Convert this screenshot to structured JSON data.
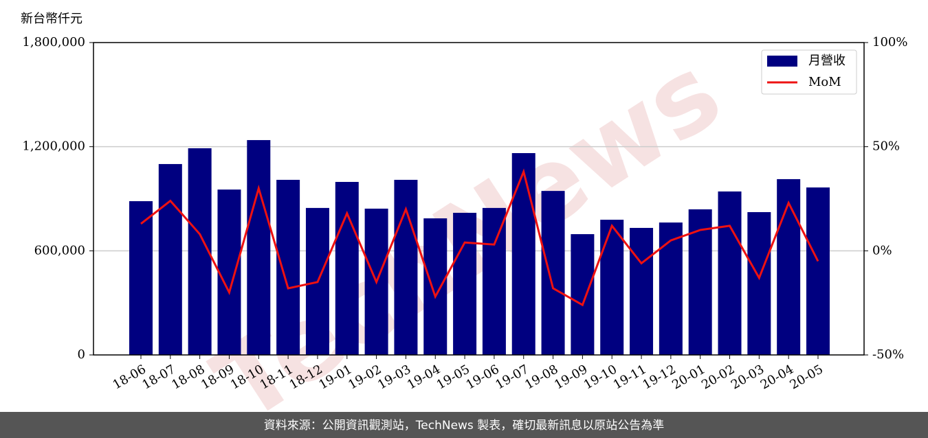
{
  "chart_data": {
    "type": "bar_line",
    "y_label": "新台幣仟元",
    "watermark": "TechNews",
    "footer": "資料來源：公開資訊觀測站，TechNews 製表，確切最新訊息以原站公告為準",
    "categories": [
      "18-06",
      "18-07",
      "18-08",
      "18-09",
      "18-10",
      "18-11",
      "18-12",
      "19-01",
      "19-02",
      "19-03",
      "19-04",
      "19-05",
      "19-06",
      "19-07",
      "19-08",
      "19-09",
      "19-10",
      "19-11",
      "19-12",
      "20-01",
      "20-02",
      "20-03",
      "20-04",
      "20-05"
    ],
    "series": [
      {
        "name": "月營收",
        "type": "bar",
        "color": "#000080",
        "values": [
          886000,
          1100000,
          1191000,
          953000,
          1238000,
          1009000,
          847000,
          997000,
          843000,
          1009000,
          787000,
          819000,
          847000,
          1163000,
          945000,
          696000,
          779000,
          732000,
          763000,
          839000,
          942000,
          823000,
          1013000,
          965000
        ]
      },
      {
        "name": "MoM",
        "type": "line",
        "axis": "y2",
        "color": "#ee1111",
        "values": [
          13,
          24,
          8,
          -20,
          30,
          -18,
          -15,
          18,
          -15,
          20,
          -22,
          4,
          3,
          38,
          -18,
          -26,
          12,
          -6,
          5,
          10,
          12,
          -13,
          23,
          -5
        ]
      }
    ],
    "ylim": [
      0,
      1800000
    ],
    "yticks": [
      0,
      {
        "value": 600000,
        "label": "600,000"
      },
      {
        "value": 1200000,
        "label": "1,200,000"
      },
      {
        "value": 1800000,
        "label": "1,800,000"
      }
    ],
    "y2lim": [
      -50,
      100
    ],
    "y2ticks": [
      {
        "value": -50,
        "label": "-50%"
      },
      {
        "value": 0,
        "label": "0%"
      },
      {
        "value": 50,
        "label": "50%"
      },
      {
        "value": 100,
        "label": "100%"
      }
    ],
    "grid": true,
    "legend": "upper right"
  }
}
